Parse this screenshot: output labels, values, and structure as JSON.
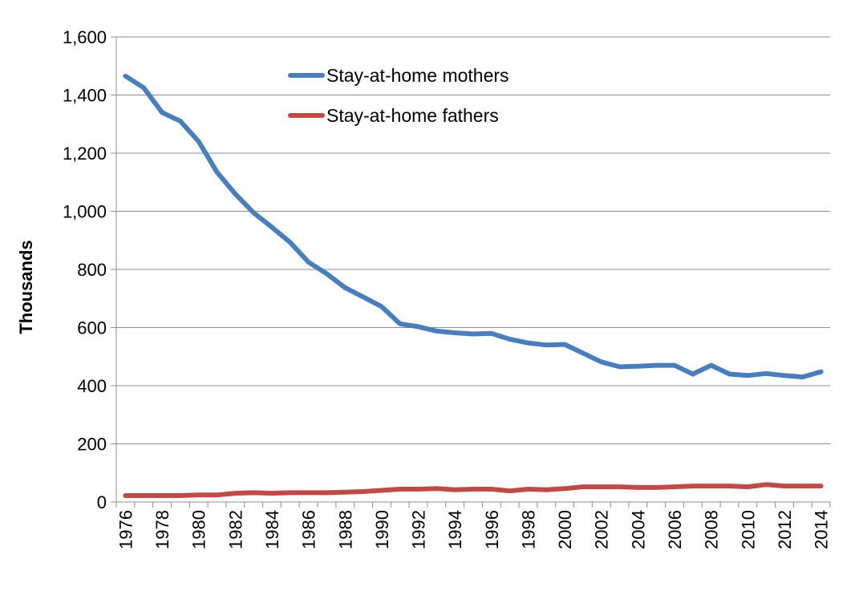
{
  "chart_data": {
    "type": "line",
    "title": "",
    "xlabel": "",
    "ylabel": "Thousands",
    "ylim": [
      0,
      1600
    ],
    "yticks": [
      "0",
      "200",
      "400",
      "600",
      "800",
      "1,000",
      "1,200",
      "1,400",
      "1,600"
    ],
    "ytick_values": [
      0,
      200,
      400,
      600,
      800,
      1000,
      1200,
      1400,
      1600
    ],
    "xlim": [
      1976,
      2014
    ],
    "xtick_labels": [
      "1976",
      "1978",
      "1980",
      "1982",
      "1984",
      "1986",
      "1988",
      "1990",
      "1992",
      "1994",
      "1996",
      "1998",
      "2000",
      "2002",
      "2004",
      "2006",
      "2008",
      "2010",
      "2012",
      "2014"
    ],
    "grid": "horizontal",
    "legend_position": "top-center",
    "x": [
      1976,
      1977,
      1978,
      1979,
      1980,
      1981,
      1982,
      1983,
      1984,
      1985,
      1986,
      1987,
      1988,
      1989,
      1990,
      1991,
      1992,
      1993,
      1994,
      1995,
      1996,
      1997,
      1998,
      1999,
      2000,
      2001,
      2002,
      2003,
      2004,
      2005,
      2006,
      2007,
      2008,
      2009,
      2010,
      2011,
      2012,
      2013,
      2014
    ],
    "series": [
      {
        "name": "Stay-at-home mothers",
        "color": "#4a7ebb",
        "values": [
          1465,
          1425,
          1340,
          1310,
          1240,
          1135,
          1060,
          995,
          945,
          893,
          825,
          785,
          737,
          705,
          672,
          613,
          603,
          588,
          582,
          578,
          580,
          560,
          547,
          540,
          542,
          512,
          482,
          465,
          467,
          470,
          470,
          440,
          470,
          440,
          435,
          442,
          435,
          430,
          448
        ]
      },
      {
        "name": "Stay-at-home fathers",
        "color": "#be4b48",
        "values": [
          22,
          22,
          22,
          22,
          24,
          24,
          30,
          32,
          30,
          32,
          32,
          32,
          34,
          36,
          40,
          44,
          44,
          46,
          42,
          44,
          44,
          38,
          44,
          42,
          46,
          52,
          52,
          52,
          50,
          50,
          52,
          55,
          55,
          55,
          52,
          60,
          55,
          55,
          55
        ]
      }
    ]
  }
}
